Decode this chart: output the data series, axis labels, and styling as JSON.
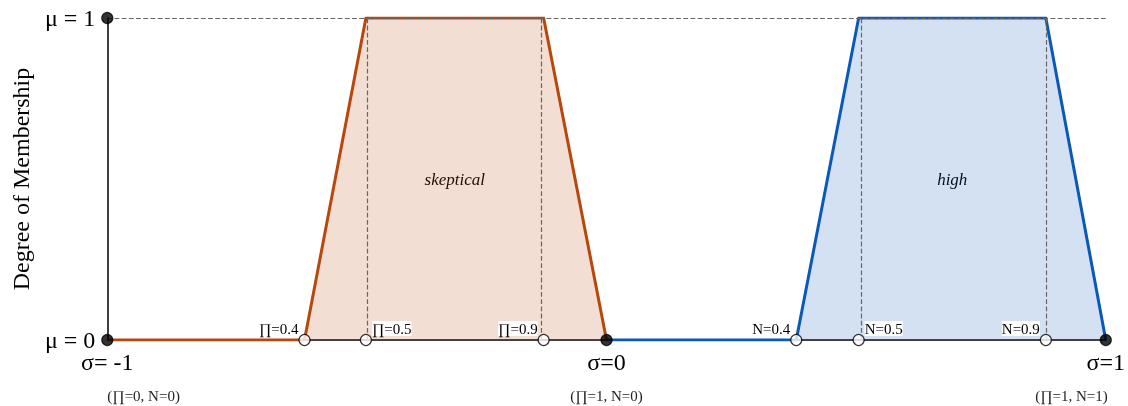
{
  "chart_data": {
    "type": "area",
    "ylabel": "Degree of Membership",
    "xlim": [
      -1,
      1
    ],
    "ylim": [
      0,
      1
    ],
    "xticks": [
      {
        "value": -1,
        "label": "σ= -1"
      },
      {
        "value": 0,
        "label": "σ=0"
      },
      {
        "value": 1,
        "label": "σ=1"
      }
    ],
    "yticks": [
      {
        "value": 0,
        "label": "μ = 0"
      },
      {
        "value": 1,
        "label": "μ = 1"
      }
    ],
    "series": [
      {
        "name": "skeptical",
        "color": "#b8470c",
        "x": [
          -1,
          -0.605,
          -0.482,
          -0.126,
          0
        ],
        "values": [
          0,
          0,
          1,
          1,
          0
        ],
        "marker": "none"
      },
      {
        "name": "high",
        "color": "#0a58b8",
        "x": [
          0,
          0.38,
          0.505,
          0.88,
          1
        ],
        "values": [
          0,
          0,
          1,
          1,
          0
        ],
        "marker": "none"
      },
      {
        "type": "scatter",
        "color": "#ffffff",
        "x": [
          -0.605,
          -0.482,
          -0.126,
          0.38,
          0.505,
          0.88
        ],
        "values": [
          0,
          0,
          0,
          0,
          0,
          0
        ],
        "marker": "circle"
      },
      {
        "type": "scatter",
        "color": "#000000",
        "x": [
          -1,
          -1,
          0,
          1
        ],
        "values": [
          0,
          1,
          0,
          0
        ],
        "marker": "circle"
      }
    ],
    "ref_lines": [
      {
        "axis": "y",
        "value": 1,
        "color": "#666666",
        "line_style": "dashed"
      },
      {
        "axis": "x",
        "value": -0.482,
        "color": "#666666",
        "line_style": "dashed"
      },
      {
        "axis": "x",
        "value": -0.126,
        "color": "#666666",
        "line_style": "dashed"
      },
      {
        "axis": "x",
        "value": 0.505,
        "color": "#666666",
        "line_style": "dashed"
      },
      {
        "axis": "x",
        "value": 0.88,
        "color": "#666666",
        "line_style": "dashed"
      }
    ],
    "annotations": [
      {
        "text": "∏=0.4",
        "x": -0.605,
        "y": 0
      },
      {
        "text": "∏=0.5",
        "x": -0.482,
        "y": 0
      },
      {
        "text": "∏=0.9",
        "x": -0.126,
        "y": 0
      },
      {
        "text": "N=0.4",
        "x": 0.38,
        "y": 0
      },
      {
        "text": "N=0.5",
        "x": 0.505,
        "y": 0
      },
      {
        "text": "N=0.9",
        "x": 0.88,
        "y": 0
      },
      "(∏=0, N=0)",
      "(∏=1, N=0)",
      "(∏=1, N=1)"
    ]
  }
}
